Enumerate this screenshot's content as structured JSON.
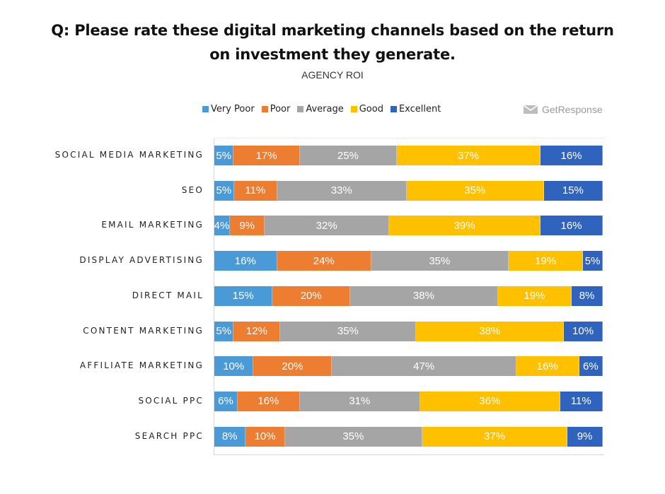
{
  "title_lines": [
    "Q: Please rate these digital marketing channels based on the return",
    "on investment they generate."
  ],
  "subtitle": "AGENCY ROI",
  "brand": {
    "name": "GetResponse",
    "icon": "envelope-icon",
    "color": "#9a9a9a"
  },
  "chart_data": {
    "type": "bar",
    "orientation": "horizontal",
    "stacked": true,
    "stack_mode": "percent",
    "legend_position": "top",
    "grid": false,
    "xlim": [
      0,
      100
    ],
    "categories": [
      "SOCIAL MEDIA MARKETING",
      "SEO",
      "EMAIL MARKETING",
      "DISPLAY ADVERTISING",
      "DIRECT MAIL",
      "CONTENT MARKETING",
      "AFFILIATE MARKETING",
      "SOCIAL PPC",
      "SEARCH PPC"
    ],
    "series": [
      {
        "name": "Very Poor",
        "color": "#4a9ad8",
        "values": [
          5,
          5,
          4,
          16,
          15,
          5,
          10,
          6,
          8
        ]
      },
      {
        "name": "Poor",
        "color": "#ed7d31",
        "values": [
          17,
          11,
          9,
          24,
          20,
          12,
          20,
          16,
          10
        ]
      },
      {
        "name": "Average",
        "color": "#a5a5a5",
        "values": [
          25,
          33,
          32,
          35,
          38,
          35,
          47,
          31,
          35
        ]
      },
      {
        "name": "Good",
        "color": "#ffc000",
        "values": [
          37,
          35,
          39,
          19,
          19,
          38,
          16,
          36,
          37
        ]
      },
      {
        "name": "Excellent",
        "color": "#2f63be",
        "values": [
          16,
          15,
          16,
          5,
          8,
          10,
          6,
          11,
          9
        ]
      }
    ]
  }
}
